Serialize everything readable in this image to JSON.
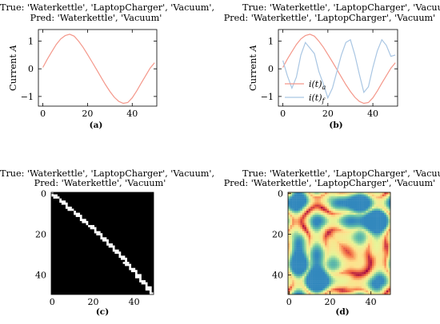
{
  "panels": [
    {
      "title_line1": "True: 'Waterkettle', 'LaptopCharger', 'Vacuum',",
      "title_line2": "Pred: 'Waterkettle', 'Vacuum'",
      "caption": "(a)"
    },
    {
      "title_line1": "True: 'Waterkettle', 'LaptopCharger', 'Vacuum',",
      "title_line2": "Pred: 'Waterkettle', 'LaptopCharger', 'Vacuum'",
      "caption": "(b)"
    },
    {
      "title_line1": "True: 'Waterkettle', 'LaptopCharger', 'Vacuum',",
      "title_line2": "Pred: 'Waterkettle', 'Vacuum'",
      "caption": "(c)"
    },
    {
      "title_line1": "True: 'Waterkettle', 'LaptopCharger', 'Vacuum',",
      "title_line2": "Pred: 'Waterkettle', 'LaptopCharger', 'Vacuum'",
      "caption": "(d)"
    }
  ],
  "chart_data": [
    {
      "type": "line",
      "ylabel": "Current A",
      "xlim": [
        -2,
        51
      ],
      "ylim": [
        -1.35,
        1.42
      ],
      "xticks": [
        0,
        20,
        40
      ],
      "yticks": [
        -1,
        0,
        1
      ],
      "series": [
        {
          "color": "#f4978a",
          "x": [
            0,
            2,
            4,
            6,
            8,
            10,
            12,
            14,
            16,
            18,
            20,
            22,
            24,
            26,
            28,
            30,
            32,
            34,
            36,
            38,
            40,
            42,
            44,
            46,
            48,
            50
          ],
          "y": [
            0.05,
            0.35,
            0.62,
            0.88,
            1.08,
            1.2,
            1.25,
            1.18,
            1.0,
            0.78,
            0.52,
            0.25,
            -0.02,
            -0.3,
            -0.57,
            -0.82,
            -1.03,
            -1.18,
            -1.25,
            -1.22,
            -1.05,
            -0.8,
            -0.52,
            -0.25,
            0.02,
            0.22
          ]
        }
      ]
    },
    {
      "type": "line",
      "ylabel": "Current A",
      "xlim": [
        -2,
        51
      ],
      "ylim": [
        -1.35,
        1.42
      ],
      "xticks": [
        0,
        20,
        40
      ],
      "yticks": [
        -1,
        0,
        1
      ],
      "legend": [
        "i(t)a",
        "i(t)f"
      ],
      "legend_position": "center-left",
      "series": [
        {
          "name": "i(t)a",
          "color": "#f4978a",
          "x": [
            0,
            2,
            4,
            6,
            8,
            10,
            12,
            14,
            16,
            18,
            20,
            22,
            24,
            26,
            28,
            30,
            32,
            34,
            36,
            38,
            40,
            42,
            44,
            46,
            48,
            50
          ],
          "y": [
            0.05,
            0.35,
            0.62,
            0.88,
            1.08,
            1.2,
            1.25,
            1.18,
            1.0,
            0.78,
            0.52,
            0.25,
            -0.02,
            -0.3,
            -0.57,
            -0.82,
            -1.03,
            -1.18,
            -1.25,
            -1.22,
            -1.05,
            -0.8,
            -0.52,
            -0.25,
            0.02,
            0.22
          ]
        },
        {
          "name": "i(t)f",
          "color": "#a9c6e3",
          "x": [
            0,
            2,
            4,
            6,
            8,
            10,
            12,
            14,
            16,
            18,
            20,
            22,
            24,
            26,
            28,
            30,
            32,
            34,
            36,
            38,
            40,
            42,
            44,
            46,
            48,
            50
          ],
          "y": [
            0.3,
            -0.25,
            -0.7,
            -0.3,
            0.5,
            0.95,
            0.75,
            0.55,
            -0.1,
            -0.55,
            -1.05,
            -0.7,
            -0.1,
            0.5,
            0.95,
            1.05,
            0.5,
            -0.2,
            -0.85,
            -0.65,
            0.05,
            0.65,
            1.05,
            0.85,
            0.45,
            0.5
          ]
        }
      ]
    },
    {
      "type": "heatmap",
      "description": "binary recurrence image",
      "colors": [
        "#000000",
        "#ffffff"
      ],
      "size": 50,
      "xticks": [
        0,
        20,
        40
      ],
      "yticks": [
        0,
        20,
        40
      ]
    },
    {
      "type": "heatmap",
      "description": "distance matrix image",
      "colors": [
        "#9e0142",
        "#f46d43",
        "#fee08b",
        "#e6f598",
        "#66c2a5",
        "#3288bd"
      ],
      "size": 50,
      "xticks": [
        0,
        20,
        40
      ],
      "yticks": [
        0,
        20,
        40
      ]
    }
  ]
}
